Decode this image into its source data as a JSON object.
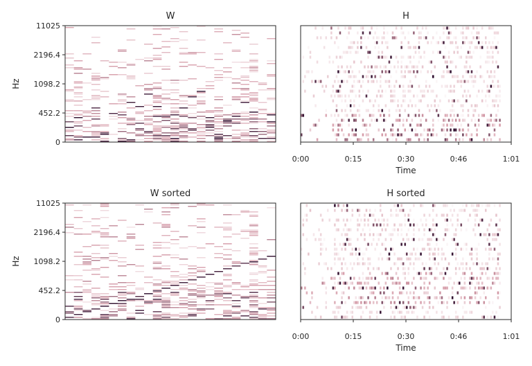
{
  "figure": {
    "panels": [
      {
        "title": "W"
      },
      {
        "title": "H"
      },
      {
        "title": "W sorted"
      },
      {
        "title": "H sorted"
      }
    ],
    "freq_axis_label": "Hz",
    "time_axis_label": "Time",
    "freq_ticks": [
      "11025",
      "2196.4",
      "1098.2",
      "452.2",
      "0"
    ],
    "time_ticks": [
      "0:00",
      "0:15",
      "0:30",
      "0:46",
      "1:01"
    ],
    "colormap": {
      "low": "#ffffff",
      "mid": "#d59ba8",
      "high": "#2a0a2a"
    }
  },
  "chart_data": [
    {
      "type": "heatmap",
      "title": "W",
      "ylabel": "Hz",
      "ytick_labels": [
        "11025",
        "2196.4",
        "1098.2",
        "452.2",
        "0"
      ],
      "components": 24,
      "description_of_pattern": "sparse spectral templates per component, energy mostly in low bands"
    },
    {
      "type": "heatmap",
      "title": "H",
      "xlabel": "Time",
      "xtick_labels": [
        "0:00",
        "0:15",
        "0:30",
        "0:46",
        "1:01"
      ],
      "components": 24,
      "description_of_pattern": "activations over time, strongest in low-index rows after 0:15"
    },
    {
      "type": "heatmap",
      "title": "W sorted",
      "ylabel": "Hz",
      "ytick_labels": [
        "11025",
        "2196.4",
        "1098.2",
        "452.2",
        "0"
      ],
      "components": 24,
      "description_of_pattern": "templates sorted by peak frequency forming an ascending diagonal"
    },
    {
      "type": "heatmap",
      "title": "H sorted",
      "xlabel": "Time",
      "xtick_labels": [
        "0:00",
        "0:15",
        "0:30",
        "0:46",
        "1:01"
      ],
      "components": 24,
      "description_of_pattern": "activations reordered to match sorted templates"
    }
  ]
}
